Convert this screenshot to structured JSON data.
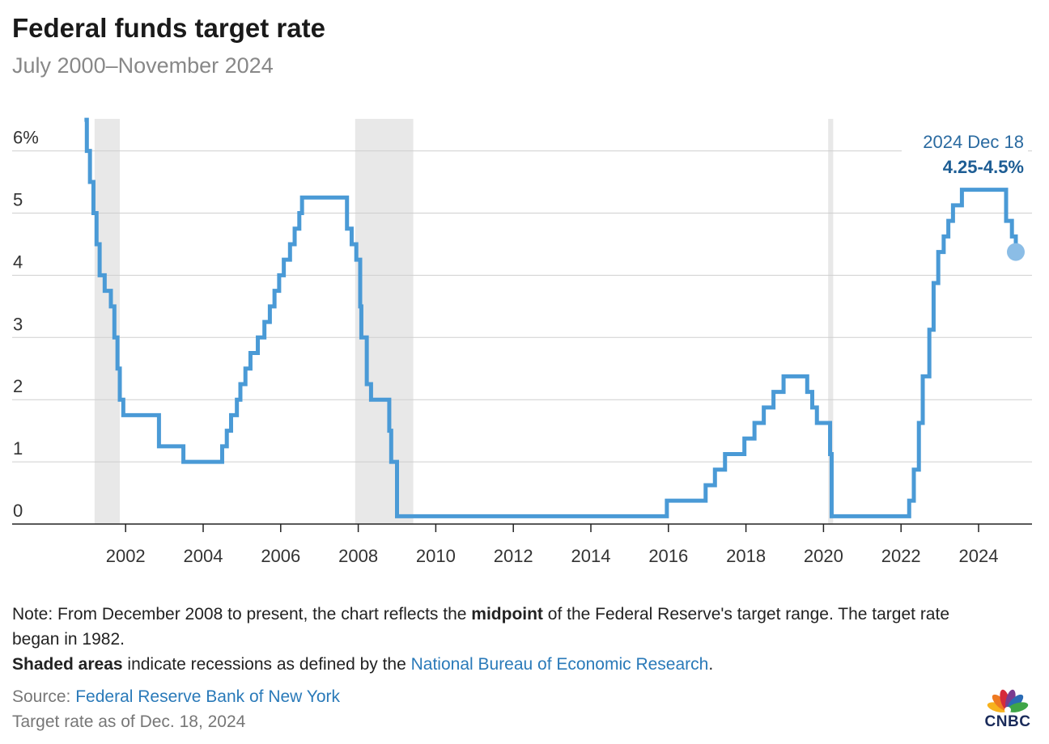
{
  "title": "Federal funds target rate",
  "subtitle": "July 2000–November 2024",
  "chart_data": {
    "type": "line",
    "step": true,
    "title": "Federal funds target rate",
    "subtitle": "July 2000–November 2024",
    "xlabel": "",
    "ylabel": "",
    "xlim": [
      2000.5,
      2025.2
    ],
    "ylim": [
      0,
      6.5
    ],
    "y_ticks": [
      0,
      1,
      2,
      3,
      4,
      5,
      6
    ],
    "y_tick_labels": [
      "0",
      "1",
      "2",
      "3",
      "4",
      "5",
      "6%"
    ],
    "x_ticks": [
      2002,
      2004,
      2006,
      2008,
      2010,
      2012,
      2014,
      2016,
      2018,
      2020,
      2022,
      2024
    ],
    "x_tick_labels": [
      "2002",
      "2004",
      "2006",
      "2008",
      "2010",
      "2012",
      "2014",
      "2016",
      "2018",
      "2020",
      "2022",
      "2024"
    ],
    "grid": "horizontal",
    "recessions": [
      [
        2001.2,
        2001.85
      ],
      [
        2007.92,
        2009.42
      ],
      [
        2020.12,
        2020.25
      ]
    ],
    "series": [
      {
        "color": "#4a9ad6",
        "points": [
          [
            2000.5,
            6.5
          ],
          [
            2001.0,
            6.0
          ],
          [
            2001.08,
            5.5
          ],
          [
            2001.17,
            5.0
          ],
          [
            2001.25,
            4.5
          ],
          [
            2001.33,
            4.0
          ],
          [
            2001.46,
            3.75
          ],
          [
            2001.62,
            3.5
          ],
          [
            2001.71,
            3.0
          ],
          [
            2001.79,
            2.5
          ],
          [
            2001.85,
            2.0
          ],
          [
            2001.94,
            1.75
          ],
          [
            2002.86,
            1.25
          ],
          [
            2003.49,
            1.0
          ],
          [
            2004.49,
            1.25
          ],
          [
            2004.61,
            1.5
          ],
          [
            2004.72,
            1.75
          ],
          [
            2004.87,
            2.0
          ],
          [
            2004.96,
            2.25
          ],
          [
            2005.09,
            2.5
          ],
          [
            2005.22,
            2.75
          ],
          [
            2005.41,
            3.0
          ],
          [
            2005.58,
            3.25
          ],
          [
            2005.72,
            3.5
          ],
          [
            2005.84,
            3.75
          ],
          [
            2005.96,
            4.0
          ],
          [
            2006.08,
            4.25
          ],
          [
            2006.24,
            4.5
          ],
          [
            2006.36,
            4.75
          ],
          [
            2006.48,
            5.0
          ],
          [
            2006.55,
            5.25
          ],
          [
            2007.71,
            4.75
          ],
          [
            2007.83,
            4.5
          ],
          [
            2007.95,
            4.25
          ],
          [
            2008.05,
            3.5
          ],
          [
            2008.08,
            3.0
          ],
          [
            2008.22,
            2.25
          ],
          [
            2008.33,
            2.0
          ],
          [
            2008.8,
            1.5
          ],
          [
            2008.85,
            1.0
          ],
          [
            2009.0,
            0.125
          ],
          [
            2015.96,
            0.375
          ],
          [
            2016.96,
            0.625
          ],
          [
            2017.2,
            0.875
          ],
          [
            2017.46,
            1.125
          ],
          [
            2017.96,
            1.375
          ],
          [
            2018.22,
            1.625
          ],
          [
            2018.46,
            1.875
          ],
          [
            2018.71,
            2.125
          ],
          [
            2018.97,
            2.375
          ],
          [
            2019.58,
            2.125
          ],
          [
            2019.71,
            1.875
          ],
          [
            2019.83,
            1.625
          ],
          [
            2020.17,
            1.125
          ],
          [
            2020.21,
            0.125
          ],
          [
            2022.21,
            0.375
          ],
          [
            2022.33,
            0.875
          ],
          [
            2022.46,
            1.625
          ],
          [
            2022.56,
            2.375
          ],
          [
            2022.73,
            3.125
          ],
          [
            2022.84,
            3.875
          ],
          [
            2022.96,
            4.375
          ],
          [
            2023.1,
            4.625
          ],
          [
            2023.22,
            4.875
          ],
          [
            2023.34,
            5.125
          ],
          [
            2023.57,
            5.375
          ],
          [
            2024.71,
            4.875
          ],
          [
            2024.86,
            4.625
          ],
          [
            2024.96,
            4.375
          ]
        ]
      }
    ],
    "annotation": {
      "label_date": "2024 Dec 18",
      "label_value": "4.25-4.5%",
      "x": 2024.96,
      "y": 4.375
    }
  },
  "notes": {
    "line1_pre": "Note: From December 2008 to present, the chart reflects the ",
    "line1_bold": "midpoint",
    "line1_post": " of the Federal Reserve's target range. The target rate began in 1982.",
    "line2_bold": "Shaded areas",
    "line2_pre": " indicate recessions as defined by the ",
    "line2_link": "National Bureau of Economic Research",
    "line2_post": "."
  },
  "source": {
    "label": "Source: ",
    "link": "Federal Reserve Bank of New York"
  },
  "as_of": "Target rate as of Dec. 18, 2024",
  "logo": {
    "text": "CNBC",
    "icon": "peacock-icon",
    "colors": [
      "#f7b21d",
      "#ef7a22",
      "#d62a3a",
      "#7a3c8f",
      "#2a6bb5",
      "#3fa548"
    ]
  }
}
